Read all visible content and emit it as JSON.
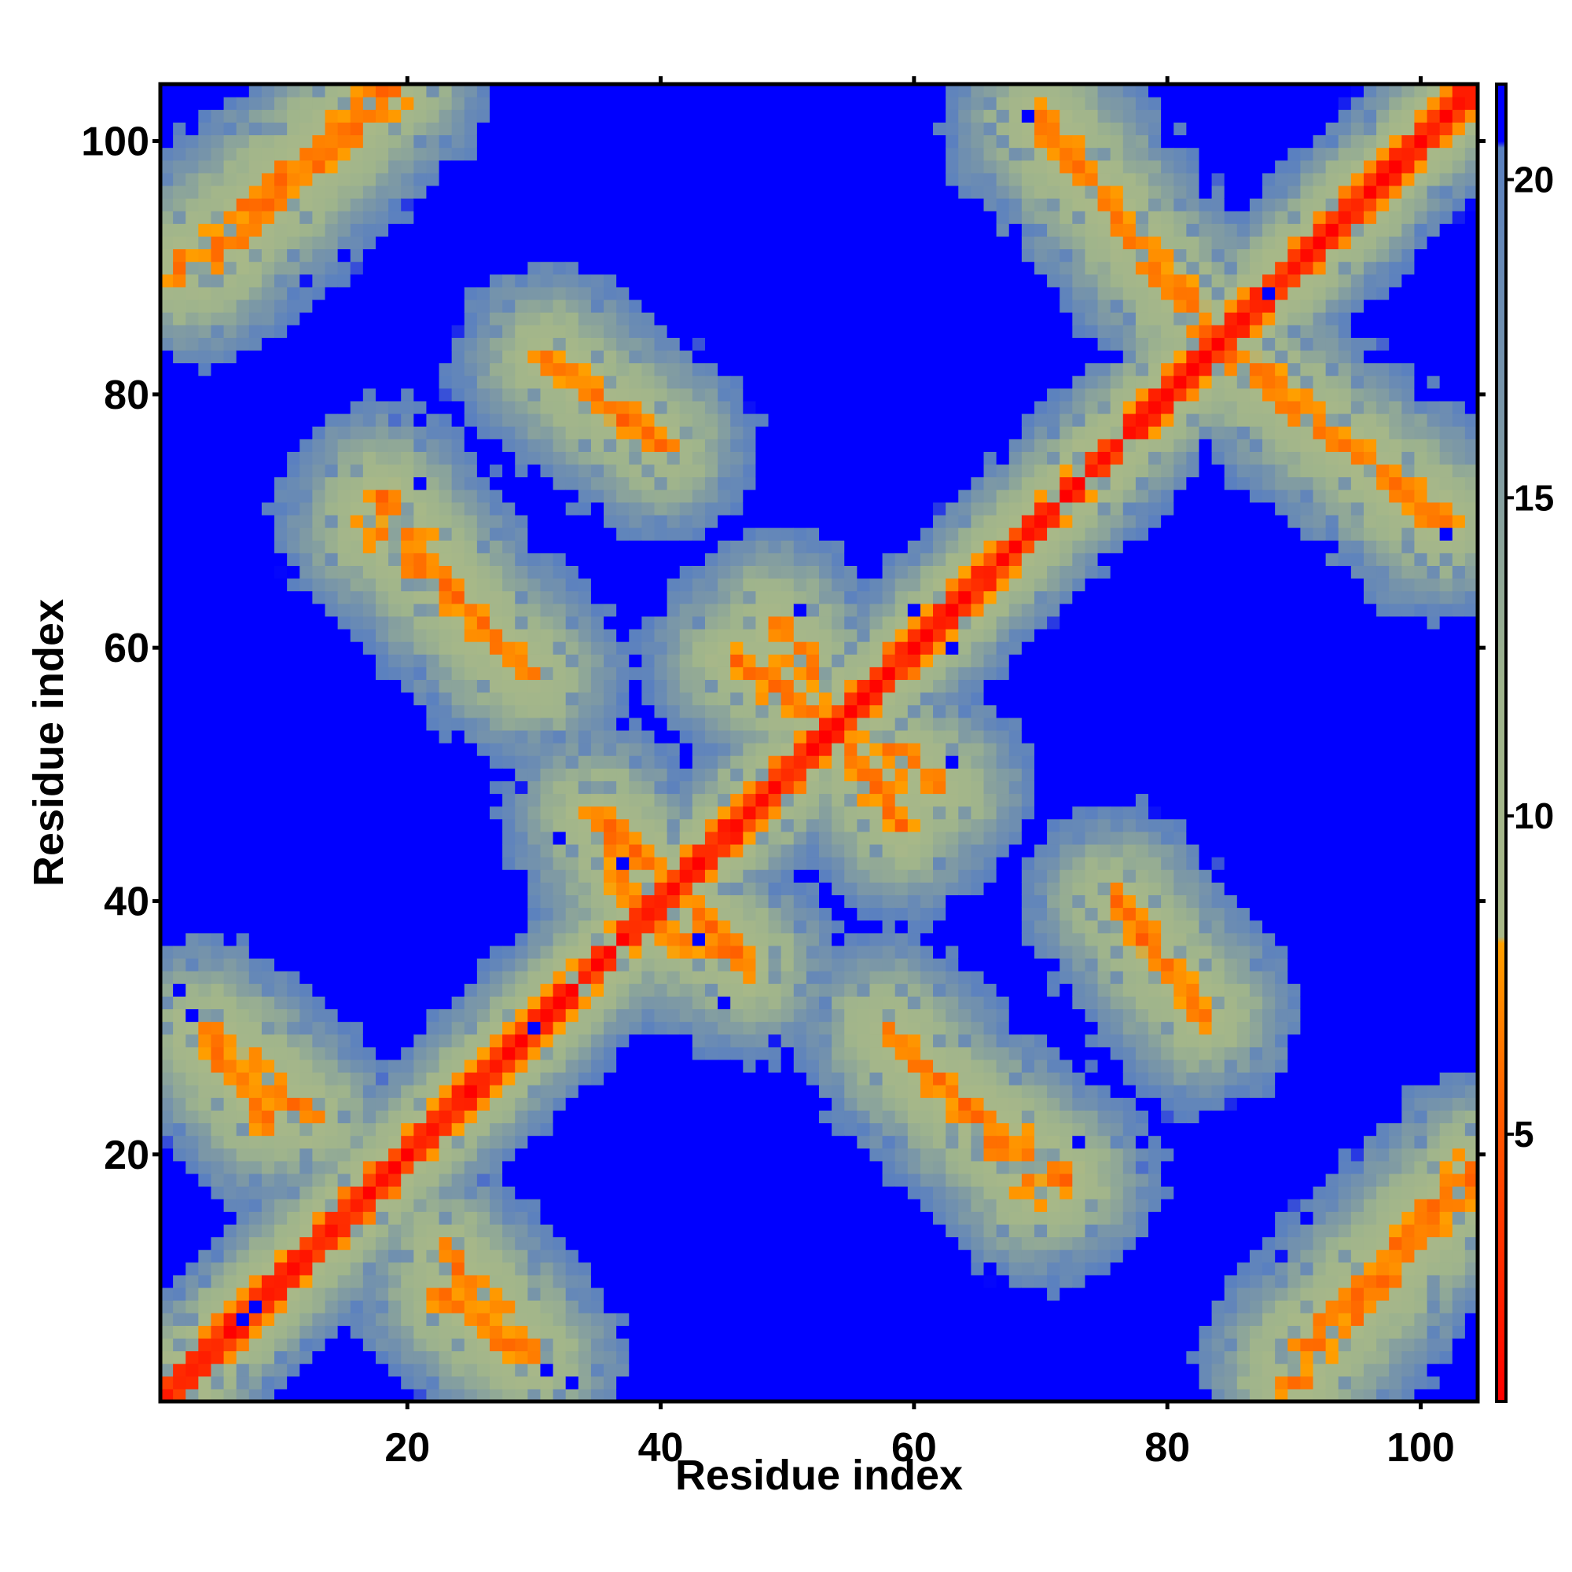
{
  "chart_data": {
    "type": "heatmap",
    "title": "",
    "xlabel": "Residue index",
    "ylabel": "Residue index",
    "n_residues": 104,
    "xlim": [
      0.5,
      104.5
    ],
    "ylim": [
      0.5,
      104.5
    ],
    "x_ticks": [
      20,
      40,
      60,
      80,
      100
    ],
    "y_ticks": [
      20,
      40,
      60,
      80,
      100
    ],
    "x_tick_labels": [
      "20",
      "40",
      "60",
      "80",
      "100"
    ],
    "y_tick_labels": [
      "20",
      "40",
      "60",
      "80",
      "100"
    ],
    "colorbar": {
      "min": 0.8,
      "max": 21.5,
      "ticks": [
        5,
        10,
        15,
        20
      ],
      "tick_labels": [
        "5",
        "10",
        "15",
        "20"
      ],
      "stops": [
        {
          "value": 0.8,
          "color": "#ff0000"
        },
        {
          "value": 5.0,
          "color": "#ff5500"
        },
        {
          "value": 8.0,
          "color": "#ffa000"
        },
        {
          "value": 8.1,
          "color": "#a8b888"
        },
        {
          "value": 12.0,
          "color": "#9fb48c"
        },
        {
          "value": 16.0,
          "color": "#7c98a6"
        },
        {
          "value": 20.5,
          "color": "#5a80c0"
        },
        {
          "value": 20.6,
          "color": "#0000ff"
        },
        {
          "value": 21.5,
          "color": "#0000ff"
        }
      ]
    },
    "value_note": "Symmetric inter-residue distance map (Å); values above 20.5 rendered saturated blue",
    "contact_bands": [
      {
        "i": [
          1,
          104
        ],
        "j": [
          1,
          104
        ],
        "kind": "diagonal"
      },
      {
        "i": [
          4,
          12
        ],
        "j": [
          30,
          23
        ],
        "kind": "antiparallel"
      },
      {
        "i": [
          18,
          27
        ],
        "j": [
          72,
          60
        ],
        "kind": "antiparallel"
      },
      {
        "i": [
          23,
          29
        ],
        "j": [
          9,
          4
        ],
        "kind": "antiparallel"
      },
      {
        "i": [
          31,
          40
        ],
        "j": [
          83,
          76
        ],
        "kind": "antiparallel"
      },
      {
        "i": [
          36,
          40
        ],
        "j": [
          46,
          42
        ],
        "kind": "antiparallel"
      },
      {
        "i": [
          40,
          47
        ],
        "j": [
          38,
          35
        ],
        "kind": "antiparallel"
      },
      {
        "i": [
          49,
          53
        ],
        "j": [
          62,
          57
        ],
        "kind": "antiparallel"
      },
      {
        "i": [
          55,
          59
        ],
        "j": [
          52,
          46
        ],
        "kind": "antiparallel"
      },
      {
        "i": [
          58,
          70
        ],
        "j": [
          30,
          17
        ],
        "kind": "antiparallel"
      },
      {
        "i": [
          70,
          82
        ],
        "j": [
          101,
          87
        ],
        "kind": "antiparallel"
      },
      {
        "i": [
          76,
          83
        ],
        "j": [
          40,
          31
        ],
        "kind": "antiparallel"
      },
      {
        "i": [
          85,
          102
        ],
        "j": [
          83,
          70
        ],
        "kind": "antiparallel"
      },
      {
        "i": [
          90,
          104
        ],
        "j": [
          4,
          19
        ],
        "kind": "parallel"
      },
      {
        "i": [
          2,
          18
        ],
        "j": [
          90,
          104
        ],
        "kind": "parallel"
      }
    ]
  }
}
